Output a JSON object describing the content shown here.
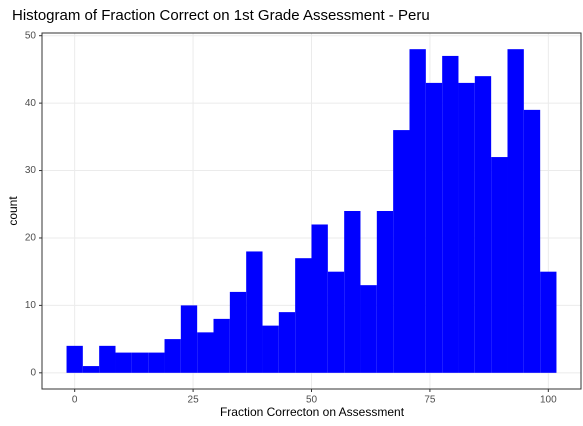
{
  "chart_data": {
    "type": "histogram",
    "title": "Histogram of Fraction Correct on 1st Grade Assessment - Peru",
    "x_label": "Fraction Correcton on Assessment",
    "y_label": "count",
    "bins": [
      -1.72,
      1.72,
      5.17,
      8.62,
      12.07,
      15.52,
      18.97,
      22.41,
      25.86,
      29.31,
      32.76,
      36.21,
      39.66,
      43.1,
      46.55,
      50.0,
      53.45,
      56.9,
      60.34,
      63.79,
      67.24,
      70.69,
      74.14,
      77.59,
      81.03,
      84.48,
      87.93,
      91.38,
      94.83,
      98.28,
      101.72
    ],
    "counts": [
      4,
      1,
      4,
      3,
      3,
      3,
      5,
      10,
      6,
      8,
      12,
      18,
      7,
      9,
      17,
      22,
      15,
      24,
      13,
      24,
      36,
      48,
      43,
      47,
      43,
      44,
      32,
      48,
      39,
      15
    ],
    "color": "#0000ff",
    "xlim": [
      -6.9,
      106.9
    ],
    "xticks": [
      0,
      25,
      50,
      75,
      100
    ],
    "ylim": [
      -2.4,
      50.4
    ],
    "yticks": [
      0,
      10,
      20,
      30,
      40,
      50
    ],
    "grid": true
  }
}
